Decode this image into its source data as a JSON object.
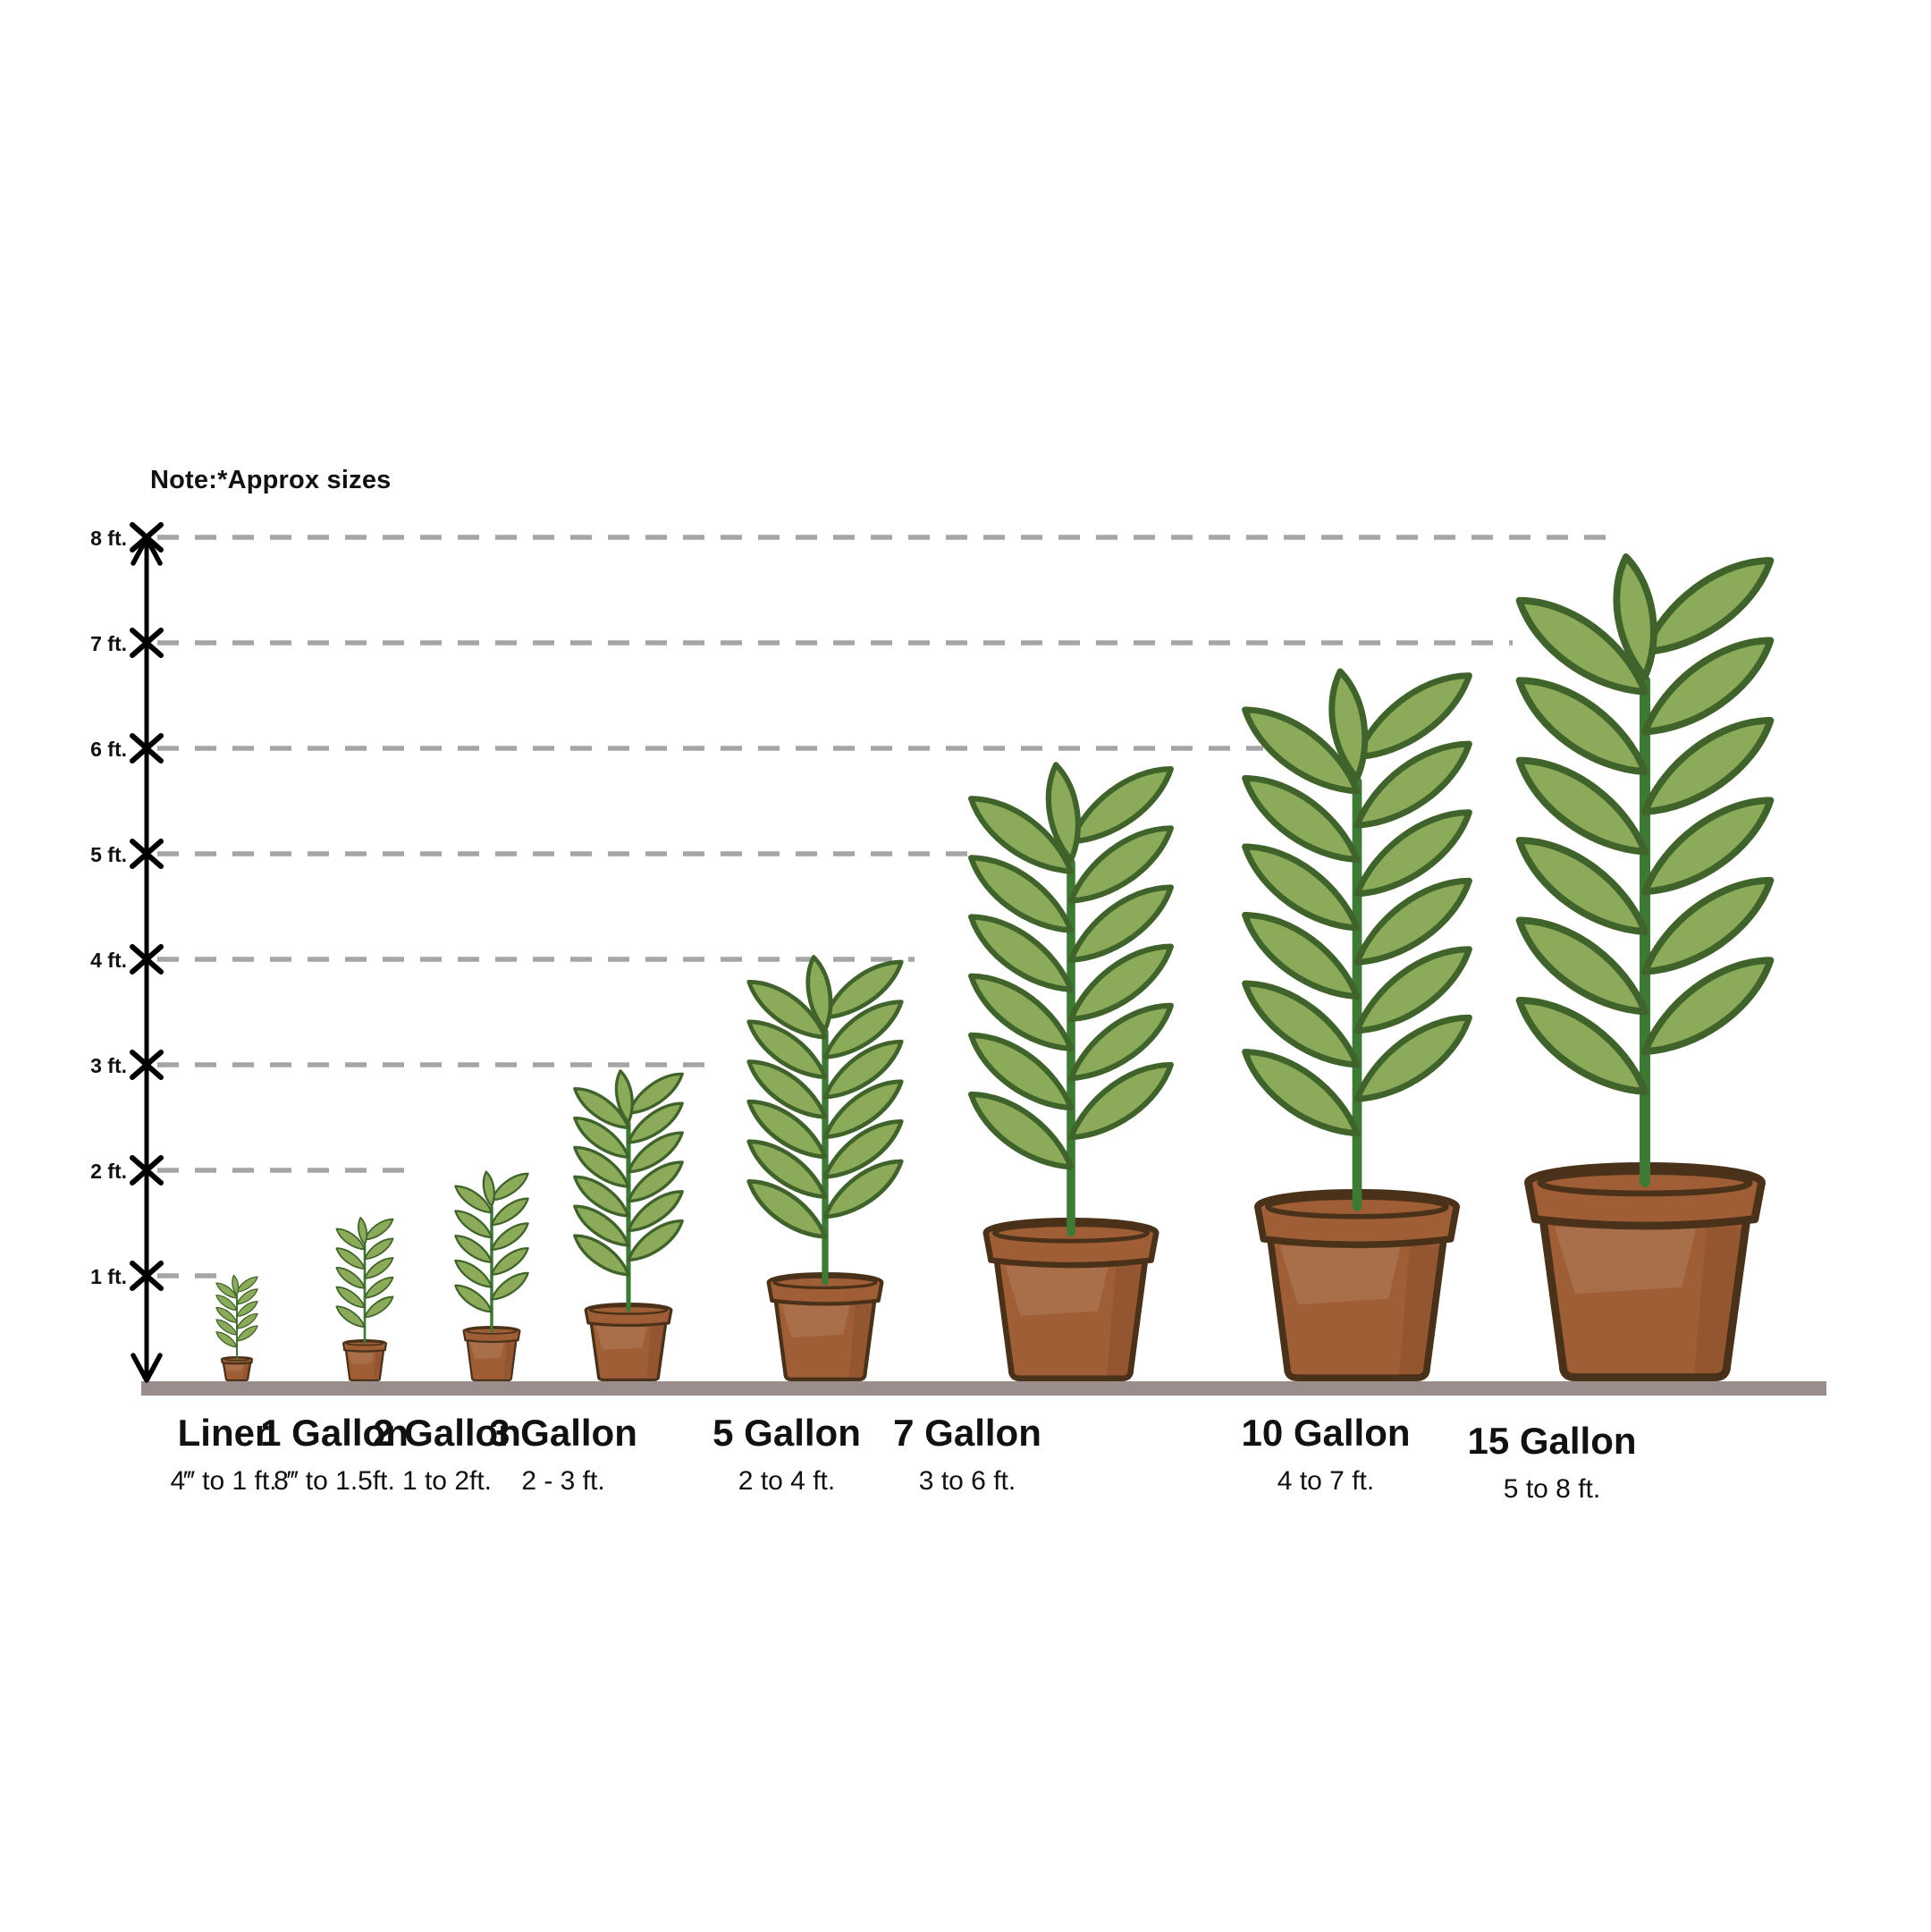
{
  "note": "Note:*Approx sizes",
  "axis": {
    "tick_labels": [
      "1 ft.",
      "2 ft.",
      "3 ft.",
      "4 ft.",
      "5 ft.",
      "6 ft.",
      "7 ft.",
      "8 ft."
    ]
  },
  "items": [
    {
      "label": "Liner",
      "range": "4‴ to 1 ft.",
      "max_ft": 1
    },
    {
      "label": "1 Gallon",
      "range": "8‴ to 1.5ft.",
      "max_ft": 1.5
    },
    {
      "label": "2 Gallon",
      "range": "1 to 2ft.",
      "max_ft": 2
    },
    {
      "label": "3 Gallon",
      "range": "2 - 3 ft.",
      "max_ft": 3
    },
    {
      "label": "5 Gallon",
      "range": "2 to 4 ft.",
      "max_ft": 4
    },
    {
      "label": "7 Gallon",
      "range": "3 to 6 ft.",
      "max_ft": 6
    },
    {
      "label": "10 Gallon",
      "range": "4 to 7 ft.",
      "max_ft": 7
    },
    {
      "label": "15 Gallon",
      "range": "5 to 8 ft.",
      "max_ft": 8
    }
  ],
  "chart_data": {
    "type": "table",
    "title": "Note:*Approx sizes",
    "categories": [
      "Liner",
      "1 Gallon",
      "2 Gallon",
      "3 Gallon",
      "5 Gallon",
      "7 Gallon",
      "10 Gallon",
      "15 Gallon"
    ],
    "series": [
      {
        "name": "height_range",
        "values": [
          "4‴ to 1 ft.",
          "8‴ to 1.5ft.",
          "1 to 2ft.",
          "2 - 3 ft.",
          "2 to 4 ft.",
          "3 to 6 ft.",
          "4 to 7 ft.",
          "5 to 8 ft."
        ]
      },
      {
        "name": "max_height_ft",
        "values": [
          1,
          1.5,
          2,
          3,
          4,
          6,
          7,
          8
        ]
      }
    ],
    "yticks": [
      1,
      2,
      3,
      4,
      5,
      6,
      7,
      8
    ],
    "ytick_unit": "ft.",
    "ylim": [
      0,
      8
    ],
    "grid": "dashed-horizontal",
    "legend": "none"
  },
  "colors": {
    "leaf_fill": "#8CAB5A",
    "leaf_outline": "#3F632A",
    "stem": "#3E7A35",
    "pot_fill": "#A05E36",
    "pot_outline": "#4A3119",
    "ground": "#9B8D8B",
    "dash_line": "#A5A5A5",
    "axis": "#000000",
    "text": "#111111"
  }
}
